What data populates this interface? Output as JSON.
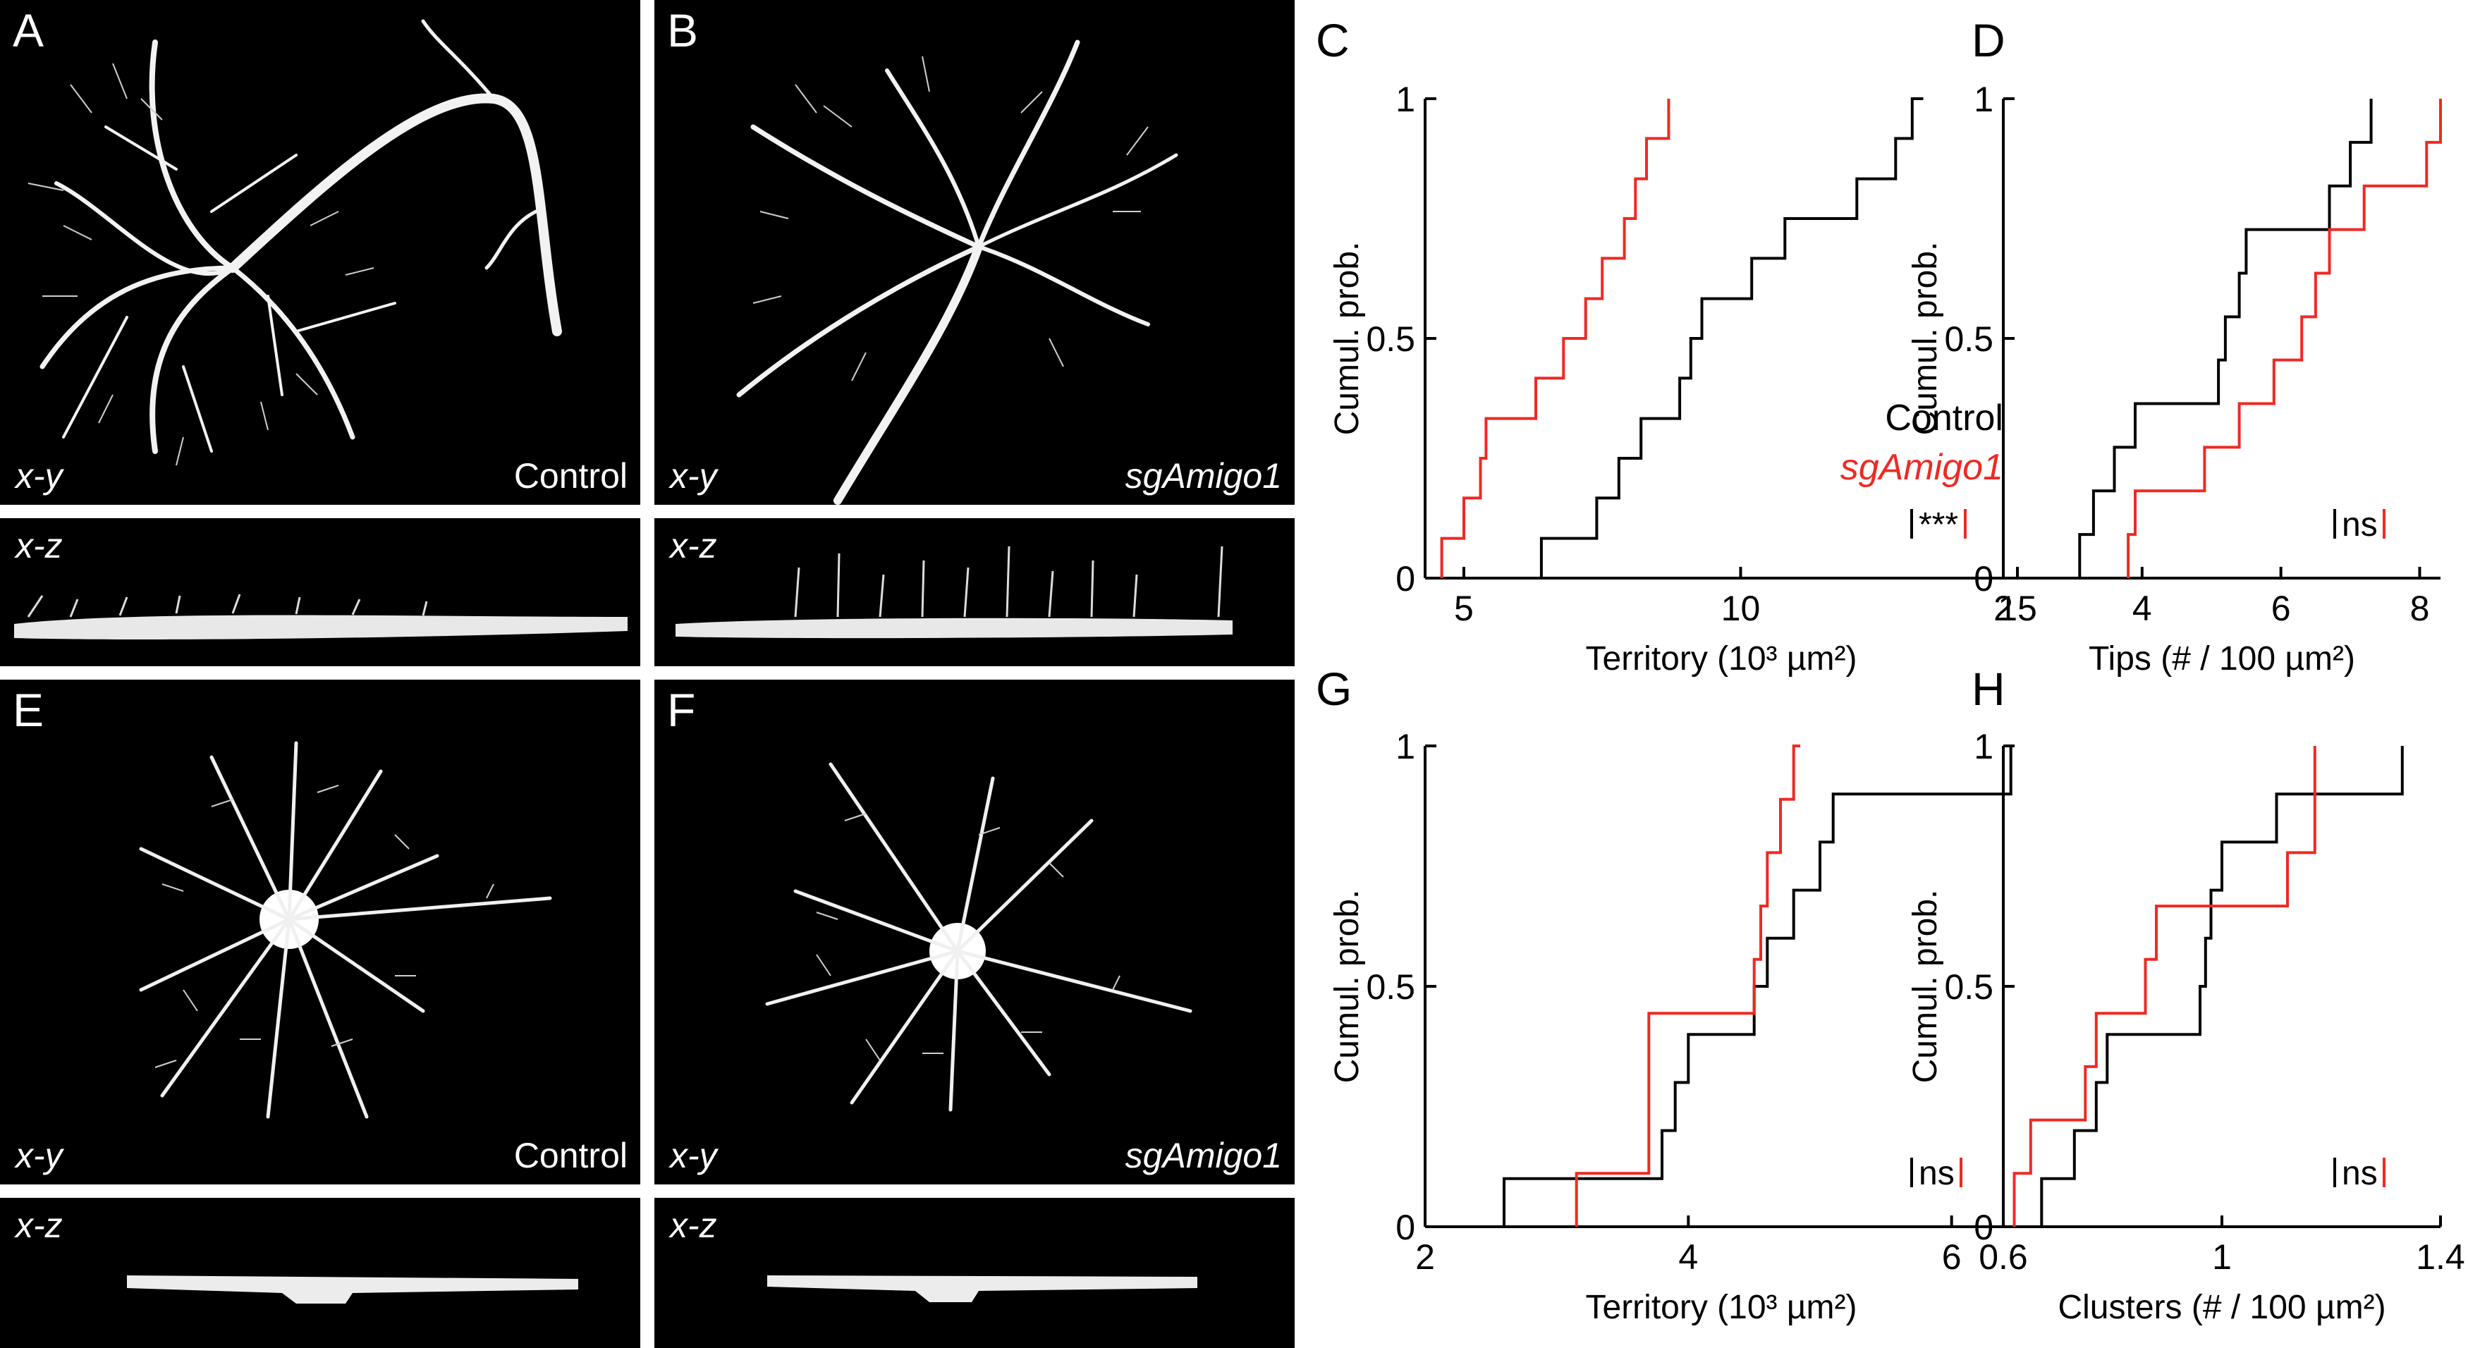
{
  "panels": {
    "A": {
      "letter": "A",
      "xy": "x-y",
      "cond": "Control",
      "xz": "x-z"
    },
    "B": {
      "letter": "B",
      "xy": "x-y",
      "cond": "sgAmigo1",
      "xz": "x-z"
    },
    "E": {
      "letter": "E",
      "xy": "x-y",
      "cond": "Control",
      "xz": "x-z"
    },
    "F": {
      "letter": "F",
      "xy": "x-y",
      "cond": "sgAmigo1",
      "xz": "x-z"
    }
  },
  "colors": {
    "control": "#000000",
    "sgAmigo1": "#ee2a24"
  },
  "chart_data": [
    {
      "panel": "C",
      "type": "line",
      "step": true,
      "xlabel": "Territory (10³ µm²)",
      "ylabel": "Cumul. prob.",
      "xlim": [
        4.3,
        15
      ],
      "ylim": [
        0,
        1
      ],
      "xticks": [
        "5",
        "10",
        "15"
      ],
      "yticks": [
        "0",
        "0.5",
        "1"
      ],
      "legend": [
        "Control",
        "sgAmigo1"
      ],
      "annotation": "***",
      "series": [
        {
          "name": "Control",
          "color": "#000000",
          "x": [
            6.4,
            7.4,
            7.8,
            8.2,
            8.9,
            9.1,
            9.3,
            10.2,
            10.8,
            12.1,
            12.8,
            13.1,
            13.3
          ],
          "y": [
            0.083,
            0.167,
            0.25,
            0.333,
            0.417,
            0.5,
            0.583,
            0.667,
            0.75,
            0.833,
            0.917,
            1.0,
            1.0
          ]
        },
        {
          "name": "sgAmigo1",
          "color": "#ee2a24",
          "x": [
            4.6,
            5.0,
            5.3,
            5.4,
            6.3,
            6.8,
            7.2,
            7.5,
            7.9,
            8.1,
            8.3,
            8.7,
            8.7
          ],
          "y": [
            0.083,
            0.167,
            0.25,
            0.333,
            0.417,
            0.5,
            0.583,
            0.667,
            0.75,
            0.833,
            0.917,
            1.0,
            1.0
          ]
        }
      ]
    },
    {
      "panel": "D",
      "type": "line",
      "step": true,
      "xlabel": "Tips (# / 100 µm²)",
      "ylabel": "Cumul. prob.",
      "xlim": [
        2,
        8.3
      ],
      "ylim": [
        0,
        1
      ],
      "xticks": [
        "2",
        "4",
        "6",
        "8"
      ],
      "yticks": [
        "0",
        "0.5",
        "1"
      ],
      "annotation": "ns",
      "series": [
        {
          "name": "Control",
          "color": "#000000",
          "x": [
            3.1,
            3.3,
            3.6,
            3.9,
            4.5,
            5.1,
            5.2,
            5.4,
            5.5,
            6.7,
            7.0,
            7.3,
            7.3
          ],
          "y": [
            0.091,
            0.182,
            0.273,
            0.364,
            0.364,
            0.455,
            0.545,
            0.636,
            0.727,
            0.818,
            0.909,
            1.0,
            1.0
          ]
        },
        {
          "name": "sgAmigo1",
          "color": "#ee2a24",
          "x": [
            3.8,
            3.9,
            4.9,
            5.4,
            5.9,
            6.3,
            6.5,
            6.7,
            7.2,
            7.5,
            8.1,
            8.3
          ],
          "y": [
            0.091,
            0.182,
            0.273,
            0.364,
            0.455,
            0.545,
            0.636,
            0.727,
            0.818,
            0.818,
            0.909,
            1.0
          ]
        }
      ]
    },
    {
      "panel": "G",
      "type": "line",
      "step": true,
      "xlabel": "Territory (10³ µm²)",
      "ylabel": "Cumul. prob.",
      "xlim": [
        2,
        6.5
      ],
      "ylim": [
        0,
        1
      ],
      "xticks": [
        "2",
        "4",
        "6"
      ],
      "yticks": [
        "0",
        "0.5",
        "1"
      ],
      "annotation": "ns",
      "series": [
        {
          "name": "Control",
          "color": "#000000",
          "x": [
            2.6,
            3.8,
            3.9,
            4.0,
            4.5,
            4.6,
            4.8,
            5.0,
            5.1,
            6.0,
            6.45
          ],
          "y": [
            0.1,
            0.2,
            0.3,
            0.4,
            0.5,
            0.6,
            0.7,
            0.8,
            0.9,
            0.9,
            1.0
          ]
        },
        {
          "name": "sgAmigo1",
          "color": "#ee2a24",
          "x": [
            3.15,
            3.7,
            4.5,
            4.55,
            4.6,
            4.7,
            4.75,
            4.8,
            4.85
          ],
          "y": [
            0.111,
            0.444,
            0.556,
            0.667,
            0.778,
            0.889,
            0.889,
            1.0,
            1.0
          ]
        }
      ]
    },
    {
      "panel": "H",
      "type": "line",
      "step": true,
      "xlabel": "Clusters (# / 100 µm²)",
      "ylabel": "Cumul. prob.",
      "xlim": [
        0.6,
        1.4
      ],
      "ylim": [
        0,
        1
      ],
      "xticks": [
        "0.6",
        "1",
        "1.4"
      ],
      "yticks": [
        "0",
        "0.5",
        "1"
      ],
      "annotation": "ns",
      "series": [
        {
          "name": "Control",
          "color": "#000000",
          "x": [
            0.67,
            0.73,
            0.77,
            0.79,
            0.96,
            0.97,
            0.98,
            1.0,
            1.1,
            1.33,
            1.33
          ],
          "y": [
            0.1,
            0.2,
            0.3,
            0.4,
            0.5,
            0.6,
            0.7,
            0.8,
            0.9,
            1.0,
            1.0
          ]
        },
        {
          "name": "sgAmigo1",
          "color": "#ee2a24",
          "x": [
            0.62,
            0.65,
            0.75,
            0.77,
            0.86,
            0.88,
            1.12,
            1.17,
            1.17
          ],
          "y": [
            0.111,
            0.222,
            0.333,
            0.444,
            0.556,
            0.667,
            0.778,
            0.889,
            1.0
          ]
        }
      ]
    }
  ]
}
